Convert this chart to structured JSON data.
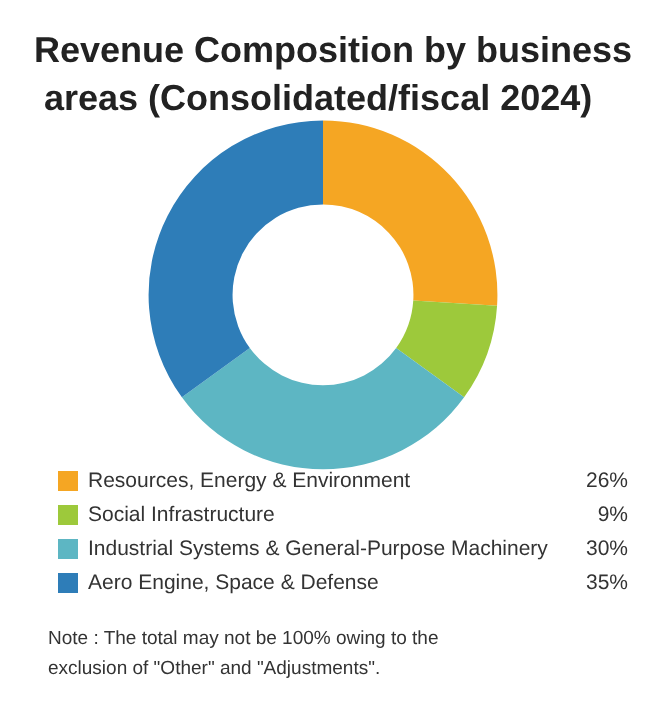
{
  "chart_data": {
    "type": "donut",
    "title": "Revenue Composition by business areas (Consolidated/fiscal 2024)",
    "categories": [
      "Resources, Energy & Environment",
      "Social Infrastructure",
      "Industrial Systems & General-Purpose Machinery",
      "Aero Engine, Space & Defense"
    ],
    "values": [
      26,
      9,
      30,
      35
    ],
    "value_labels": [
      "26%",
      "9%",
      "30%",
      "35%"
    ],
    "colors": [
      "#f5a623",
      "#9dc93b",
      "#5db6c3",
      "#2e7db8"
    ],
    "legend": "bottom",
    "annotations": [
      "Note : The total may not be 100% owing to the exclusion of \"Other\" and \"Adjustments\"."
    ]
  }
}
